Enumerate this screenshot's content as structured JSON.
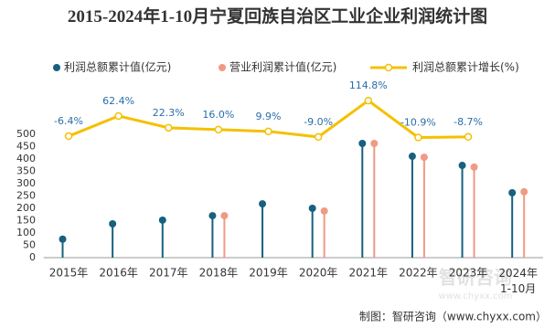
{
  "chart_data": {
    "type": "lollipop",
    "title": "2015-2024年1-10月宁夏回族自治区工业企业利润统计图",
    "categories": [
      "2015年",
      "2016年",
      "2017年",
      "2018年",
      "2019年",
      "2020年",
      "2021年",
      "2022年",
      "2023年",
      "2024年\n1-10月"
    ],
    "series": [
      {
        "name": "利润总额累计值(亿元)",
        "color": "#17607f",
        "values": [
          75,
          137,
          152,
          170,
          218,
          200,
          463,
          411,
          374,
          263
        ]
      },
      {
        "name": "营业利润累计值(亿元)",
        "color": "#f09a84",
        "values": [
          null,
          null,
          null,
          170,
          null,
          189,
          463,
          407,
          367,
          267
        ]
      },
      {
        "name": "利润总额累计增长(%)",
        "color": "#f5c000",
        "type": "line",
        "axis": "y2",
        "label_color": "#2a6fa8",
        "values": [
          -6.4,
          62.4,
          22.3,
          16.0,
          9.9,
          -9.0,
          114.8,
          -10.9,
          -8.7,
          null
        ],
        "value_labels": [
          "-6.4%",
          "62.4%",
          "22.3%",
          "16.0%",
          "9.9%",
          "-9.0%",
          "114.8%",
          "-10.9%",
          "-8.7%",
          null
        ]
      }
    ],
    "ylim": [
      0,
      500
    ],
    "yticks": [
      0,
      50,
      100,
      150,
      200,
      250,
      300,
      350,
      400,
      450,
      500
    ],
    "y2lim": [
      -420,
      0
    ],
    "grid": false,
    "legend": "top",
    "source": "制图：智研咨询（www.chyxx.com）",
    "watermark": [
      "智研咨询",
      "www.chyxx.com"
    ]
  }
}
